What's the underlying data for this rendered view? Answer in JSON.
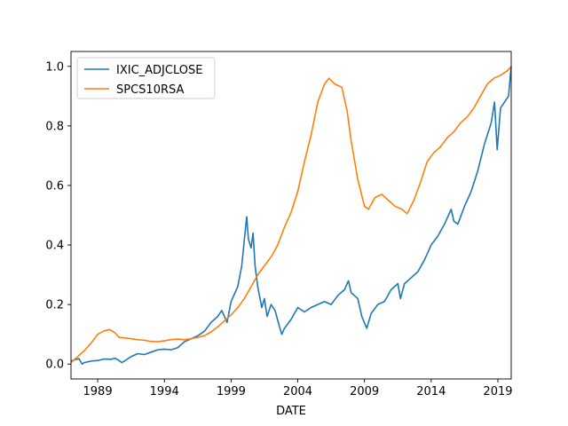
{
  "chart_data": {
    "type": "line",
    "title": "",
    "xlabel": "DATE",
    "ylabel": "",
    "xlim": [
      1987.0,
      2020.0
    ],
    "ylim": [
      -0.05,
      1.05
    ],
    "x_ticks": [
      1989,
      1994,
      1999,
      2004,
      2009,
      2014,
      2019
    ],
    "x_tick_labels": [
      "1989",
      "1994",
      "1999",
      "2004",
      "2009",
      "2014",
      "2019"
    ],
    "y_ticks": [
      0.0,
      0.2,
      0.4,
      0.6,
      0.8,
      1.0
    ],
    "y_tick_labels": [
      "0.0",
      "0.2",
      "0.4",
      "0.6",
      "0.8",
      "1.0"
    ],
    "grid": false,
    "legend_position": "top-left",
    "series": [
      {
        "name": "IXIC_ADJCLOSE",
        "color": "#1f77b4",
        "points": [
          [
            1987.0,
            0.01
          ],
          [
            1987.3,
            0.015
          ],
          [
            1987.6,
            0.018
          ],
          [
            1987.83,
            0.0
          ],
          [
            1988.0,
            0.005
          ],
          [
            1988.5,
            0.01
          ],
          [
            1989.0,
            0.012
          ],
          [
            1989.5,
            0.017
          ],
          [
            1990.0,
            0.016
          ],
          [
            1990.3,
            0.02
          ],
          [
            1990.6,
            0.012
          ],
          [
            1990.8,
            0.005
          ],
          [
            1991.0,
            0.01
          ],
          [
            1991.5,
            0.025
          ],
          [
            1992.0,
            0.035
          ],
          [
            1992.5,
            0.032
          ],
          [
            1993.0,
            0.04
          ],
          [
            1993.5,
            0.048
          ],
          [
            1994.0,
            0.05
          ],
          [
            1994.5,
            0.048
          ],
          [
            1995.0,
            0.055
          ],
          [
            1995.5,
            0.075
          ],
          [
            1996.0,
            0.085
          ],
          [
            1996.5,
            0.095
          ],
          [
            1997.0,
            0.11
          ],
          [
            1997.5,
            0.14
          ],
          [
            1998.0,
            0.16
          ],
          [
            1998.3,
            0.18
          ],
          [
            1998.7,
            0.14
          ],
          [
            1999.0,
            0.21
          ],
          [
            1999.5,
            0.26
          ],
          [
            1999.8,
            0.33
          ],
          [
            2000.0,
            0.42
          ],
          [
            2000.17,
            0.495
          ],
          [
            2000.3,
            0.42
          ],
          [
            2000.5,
            0.39
          ],
          [
            2000.65,
            0.44
          ],
          [
            2000.8,
            0.33
          ],
          [
            2001.0,
            0.26
          ],
          [
            2001.3,
            0.19
          ],
          [
            2001.5,
            0.22
          ],
          [
            2001.7,
            0.16
          ],
          [
            2002.0,
            0.2
          ],
          [
            2002.3,
            0.18
          ],
          [
            2002.6,
            0.13
          ],
          [
            2002.8,
            0.1
          ],
          [
            2003.0,
            0.12
          ],
          [
            2003.5,
            0.15
          ],
          [
            2004.0,
            0.19
          ],
          [
            2004.5,
            0.175
          ],
          [
            2005.0,
            0.19
          ],
          [
            2005.5,
            0.2
          ],
          [
            2006.0,
            0.21
          ],
          [
            2006.5,
            0.2
          ],
          [
            2007.0,
            0.23
          ],
          [
            2007.5,
            0.25
          ],
          [
            2007.8,
            0.28
          ],
          [
            2008.0,
            0.24
          ],
          [
            2008.5,
            0.22
          ],
          [
            2008.8,
            0.16
          ],
          [
            2009.17,
            0.12
          ],
          [
            2009.5,
            0.17
          ],
          [
            2010.0,
            0.2
          ],
          [
            2010.5,
            0.21
          ],
          [
            2011.0,
            0.25
          ],
          [
            2011.5,
            0.27
          ],
          [
            2011.7,
            0.22
          ],
          [
            2012.0,
            0.27
          ],
          [
            2012.5,
            0.29
          ],
          [
            2013.0,
            0.31
          ],
          [
            2013.5,
            0.35
          ],
          [
            2014.0,
            0.4
          ],
          [
            2014.5,
            0.43
          ],
          [
            2015.0,
            0.47
          ],
          [
            2015.5,
            0.52
          ],
          [
            2015.7,
            0.48
          ],
          [
            2016.0,
            0.47
          ],
          [
            2016.5,
            0.53
          ],
          [
            2017.0,
            0.58
          ],
          [
            2017.5,
            0.65
          ],
          [
            2018.0,
            0.74
          ],
          [
            2018.5,
            0.81
          ],
          [
            2018.75,
            0.88
          ],
          [
            2018.95,
            0.72
          ],
          [
            2019.2,
            0.86
          ],
          [
            2019.5,
            0.88
          ],
          [
            2019.8,
            0.9
          ],
          [
            2020.0,
            1.0
          ]
        ]
      },
      {
        "name": "SPCS10RSA",
        "color": "#ff7f0e",
        "points": [
          [
            1987.0,
            0.005
          ],
          [
            1987.5,
            0.025
          ],
          [
            1988.0,
            0.045
          ],
          [
            1988.5,
            0.07
          ],
          [
            1989.0,
            0.1
          ],
          [
            1989.5,
            0.112
          ],
          [
            1989.9,
            0.116
          ],
          [
            1990.3,
            0.105
          ],
          [
            1990.6,
            0.09
          ],
          [
            1991.0,
            0.088
          ],
          [
            1991.5,
            0.085
          ],
          [
            1992.0,
            0.082
          ],
          [
            1992.5,
            0.08
          ],
          [
            1993.0,
            0.076
          ],
          [
            1993.5,
            0.075
          ],
          [
            1994.0,
            0.078
          ],
          [
            1994.5,
            0.082
          ],
          [
            1995.0,
            0.084
          ],
          [
            1995.5,
            0.082
          ],
          [
            1996.0,
            0.085
          ],
          [
            1996.5,
            0.09
          ],
          [
            1997.0,
            0.095
          ],
          [
            1997.5,
            0.108
          ],
          [
            1998.0,
            0.125
          ],
          [
            1998.5,
            0.145
          ],
          [
            1999.0,
            0.165
          ],
          [
            1999.5,
            0.19
          ],
          [
            2000.0,
            0.22
          ],
          [
            2000.5,
            0.26
          ],
          [
            2001.0,
            0.3
          ],
          [
            2001.5,
            0.33
          ],
          [
            2002.0,
            0.36
          ],
          [
            2002.5,
            0.4
          ],
          [
            2003.0,
            0.46
          ],
          [
            2003.5,
            0.51
          ],
          [
            2004.0,
            0.58
          ],
          [
            2004.5,
            0.68
          ],
          [
            2005.0,
            0.77
          ],
          [
            2005.5,
            0.88
          ],
          [
            2006.0,
            0.94
          ],
          [
            2006.33,
            0.96
          ],
          [
            2006.8,
            0.94
          ],
          [
            2007.3,
            0.93
          ],
          [
            2007.7,
            0.85
          ],
          [
            2008.0,
            0.75
          ],
          [
            2008.5,
            0.62
          ],
          [
            2009.0,
            0.53
          ],
          [
            2009.3,
            0.52
          ],
          [
            2009.8,
            0.56
          ],
          [
            2010.3,
            0.57
          ],
          [
            2010.8,
            0.55
          ],
          [
            2011.3,
            0.53
          ],
          [
            2011.8,
            0.52
          ],
          [
            2012.2,
            0.505
          ],
          [
            2012.7,
            0.55
          ],
          [
            2013.2,
            0.61
          ],
          [
            2013.7,
            0.68
          ],
          [
            2014.2,
            0.71
          ],
          [
            2014.7,
            0.73
          ],
          [
            2015.2,
            0.76
          ],
          [
            2015.7,
            0.78
          ],
          [
            2016.2,
            0.81
          ],
          [
            2016.7,
            0.83
          ],
          [
            2017.2,
            0.86
          ],
          [
            2017.7,
            0.9
          ],
          [
            2018.2,
            0.94
          ],
          [
            2018.7,
            0.96
          ],
          [
            2019.2,
            0.97
          ],
          [
            2019.7,
            0.985
          ],
          [
            2020.0,
            1.0
          ]
        ]
      }
    ]
  }
}
